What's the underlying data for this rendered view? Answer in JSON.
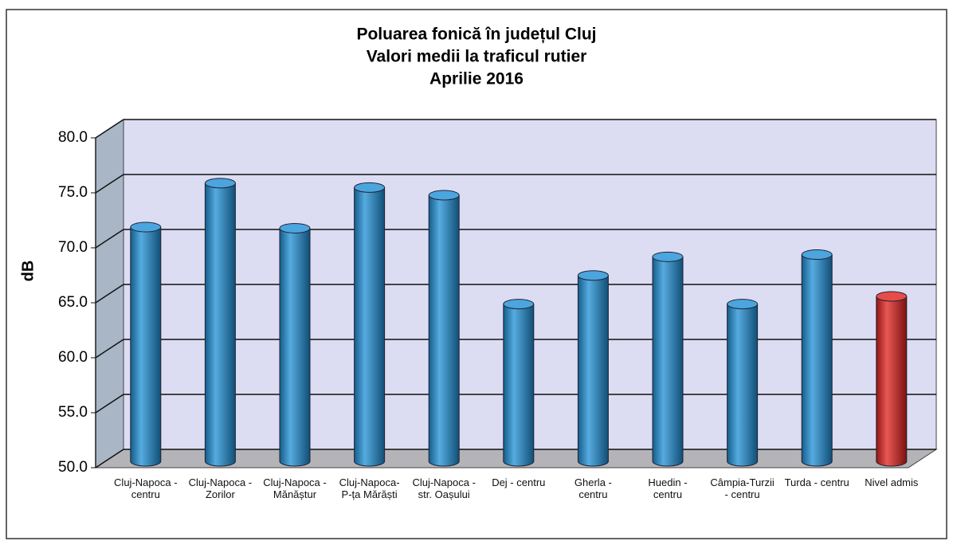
{
  "chart_data": {
    "type": "bar3d",
    "title": [
      "Poluarea fonică în județul Cluj",
      "Valori medii la traficul rutier",
      "Aprilie  2016"
    ],
    "y_label": "dB",
    "categories": [
      "Cluj-Napoca - centru",
      "Cluj-Napoca - Zorilor",
      "Cluj-Napoca - Mănăștur",
      "Cluj-Napoca-P-ța Mărăști",
      "Cluj-Napoca - str. Oașului",
      "Dej - centru",
      "Gherla - centru",
      "Huedin - centru",
      "Câmpia-Turzii - centru",
      "Turda - centru",
      "Nivel admis"
    ],
    "values": [
      71.3,
      75.3,
      71.2,
      74.9,
      74.2,
      64.3,
      66.9,
      68.6,
      64.3,
      68.8,
      65.0
    ],
    "colors": [
      "#1e8fd6",
      "#1e8fd6",
      "#1e8fd6",
      "#1e8fd6",
      "#1e8fd6",
      "#1e8fd6",
      "#1e8fd6",
      "#1e8fd6",
      "#1e8fd6",
      "#1e8fd6",
      "#e0201c"
    ],
    "ylim": [
      50,
      80
    ],
    "yticks": [
      {
        "value": 50,
        "label": "50.0"
      },
      {
        "value": 55,
        "label": "55.0"
      },
      {
        "value": 60,
        "label": "60.0"
      },
      {
        "value": 65,
        "label": "65.0"
      },
      {
        "value": 70,
        "label": "70.0"
      },
      {
        "value": 75,
        "label": "75.0"
      },
      {
        "value": 80,
        "label": "80.0"
      }
    ],
    "grid": true
  }
}
